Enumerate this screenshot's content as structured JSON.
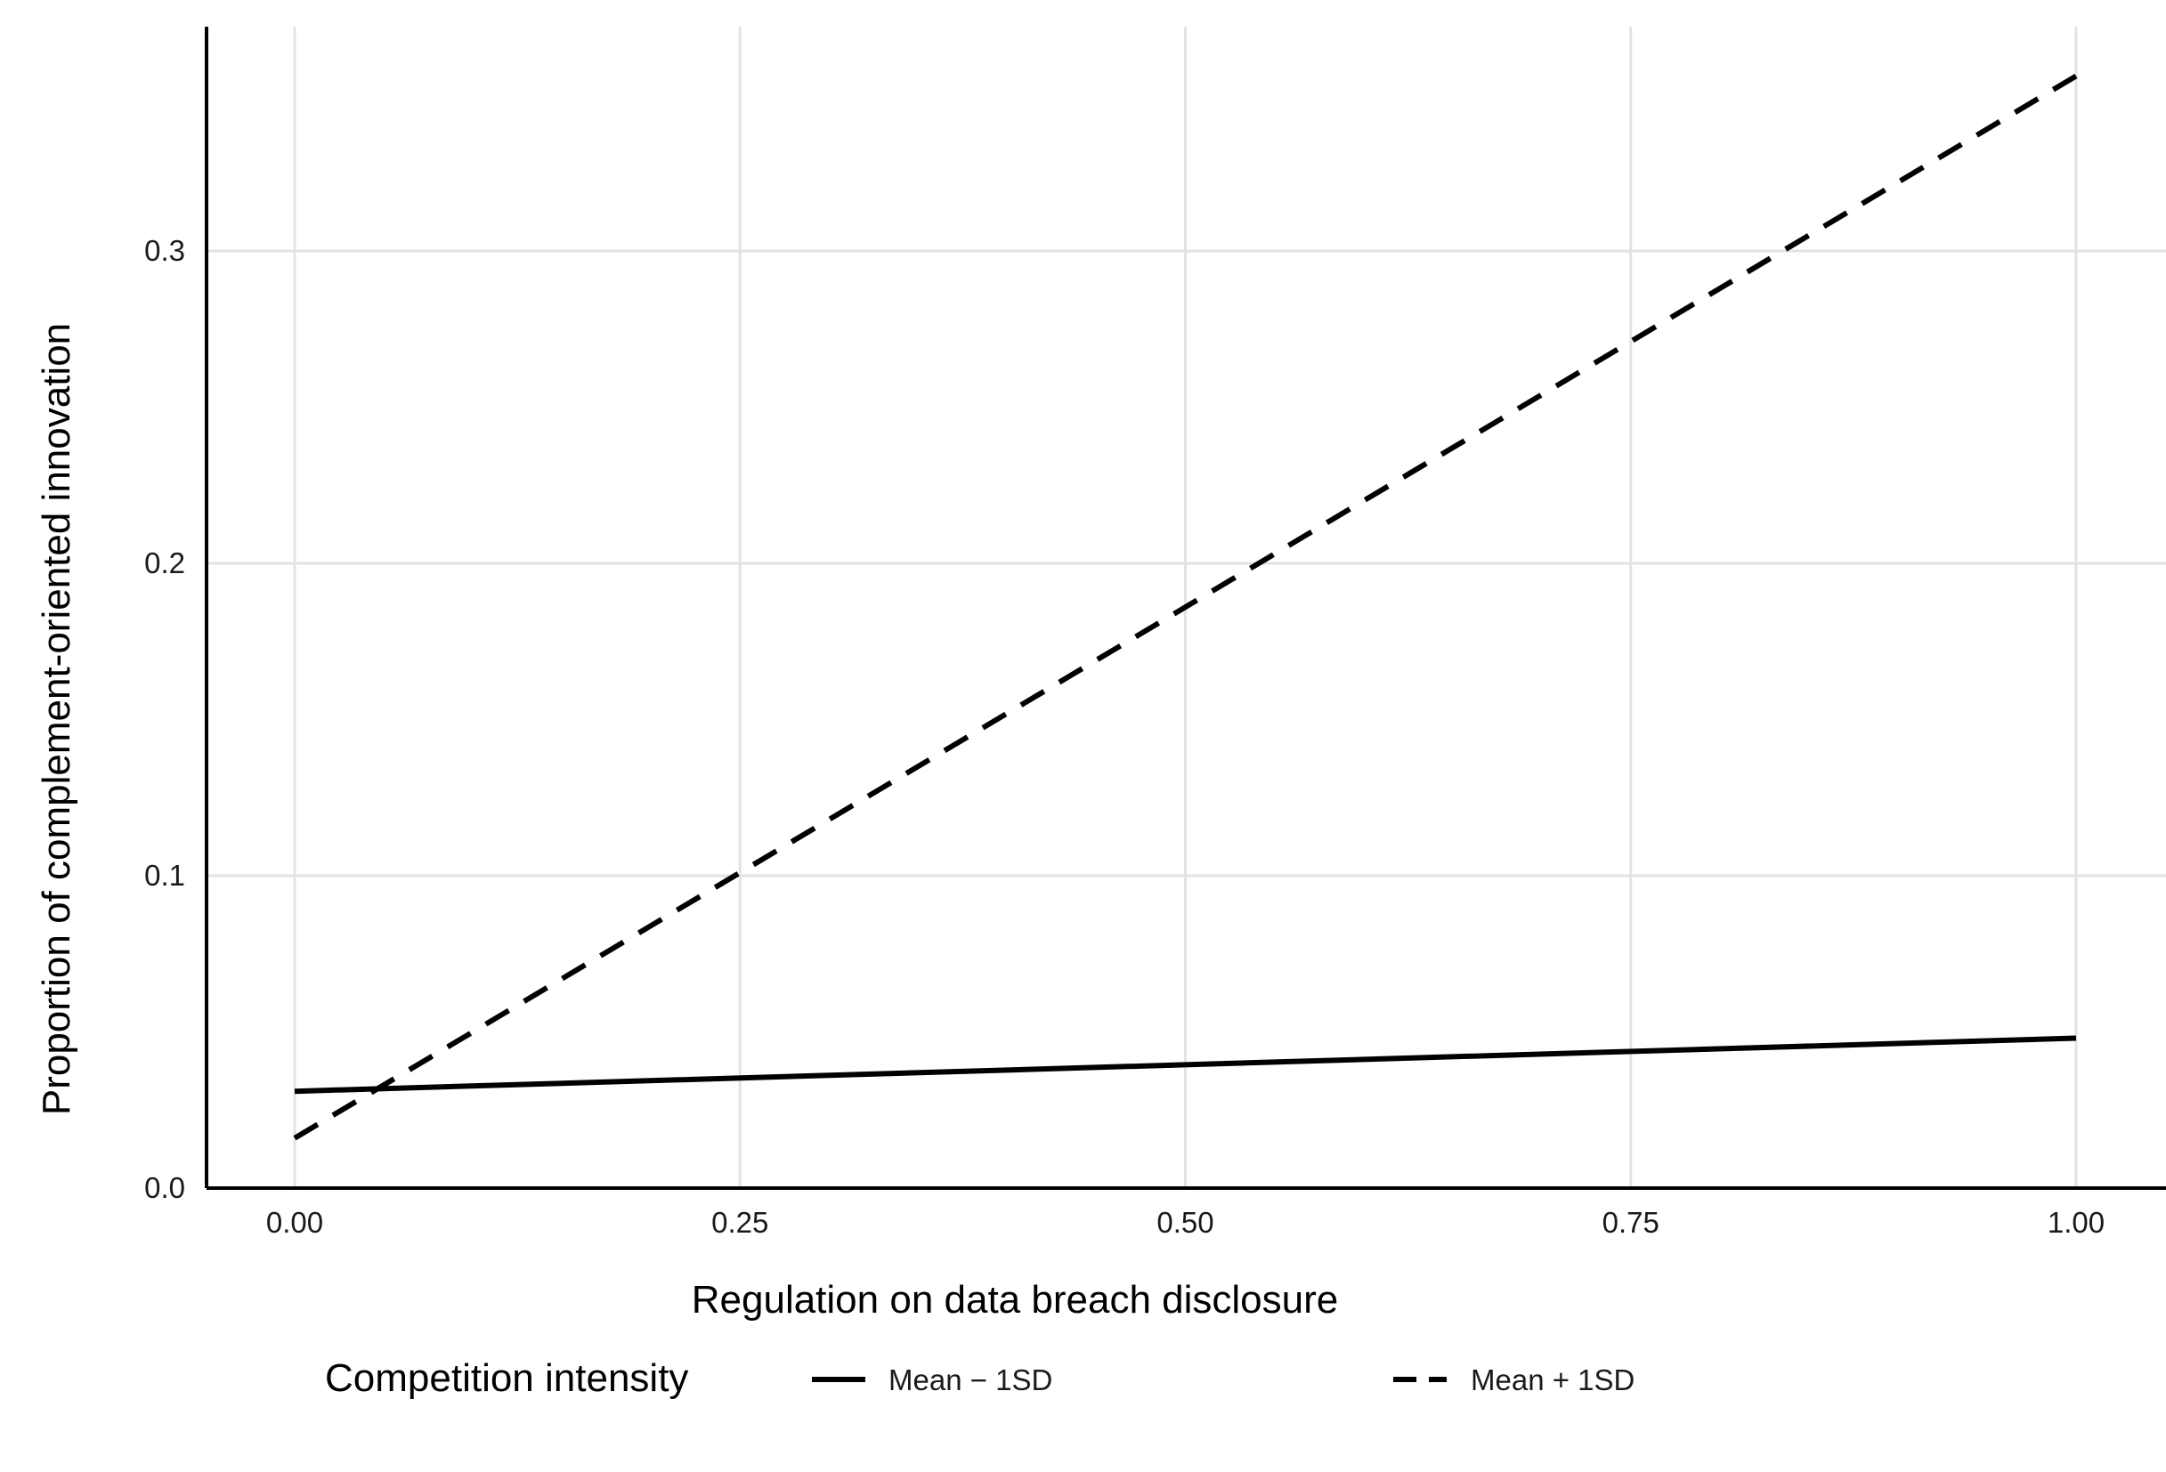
{
  "chart_data": {
    "type": "line",
    "title": "",
    "xlabel": "Regulation on data breach disclosure",
    "ylabel": "Proportion of complement-oriented innovation",
    "xlim": [
      -0.05,
      1.05
    ],
    "ylim": [
      0.0,
      0.37
    ],
    "x_ticks": [
      0.0,
      0.25,
      0.5,
      0.75,
      1.0
    ],
    "x_tick_labels": [
      "0.00",
      "0.25",
      "0.50",
      "0.75",
      "1.00"
    ],
    "y_ticks": [
      0.0,
      0.1,
      0.2,
      0.3
    ],
    "y_tick_labels": [
      "0.0",
      "0.1",
      "0.2",
      "0.3"
    ],
    "grid": true,
    "legend": {
      "title": "Competition intensity",
      "placement": "bottom"
    },
    "series": [
      {
        "name": "Mean − 1SD",
        "style": "solid",
        "color": "#000000",
        "x": [
          0.0,
          1.0
        ],
        "y": [
          0.031,
          0.048
        ]
      },
      {
        "name": "Mean + 1SD",
        "style": "dashed",
        "color": "#000000",
        "x": [
          0.0,
          1.0
        ],
        "y": [
          0.016,
          0.356
        ]
      }
    ]
  }
}
